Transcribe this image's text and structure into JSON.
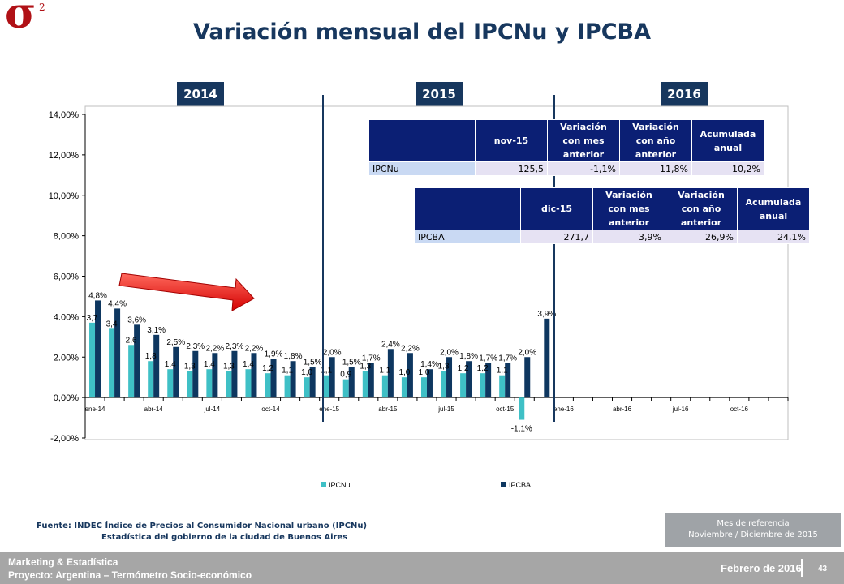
{
  "page": {
    "title": "Variación mensual del IPCNu y IPCBA",
    "logo_text": "σ",
    "logo_sup": "2"
  },
  "year_labels": [
    "2014",
    "2015",
    "2016"
  ],
  "tables": {
    "ipcnu": {
      "headers": [
        "",
        "nov-15",
        "Variación con mes anterior",
        "Variación con año anterior",
        "Acumulada anual"
      ],
      "row": [
        "IPCNu",
        "125,5",
        "-1,1%",
        "11,8%",
        "10,2%"
      ]
    },
    "ipcba": {
      "headers": [
        "",
        "dic-15",
        "Variación con mes anterior",
        "Variación con año anterior",
        "Acumulada anual"
      ],
      "row": [
        "IPCBA",
        "271,7",
        "3,9%",
        "26,9%",
        "24,1%"
      ]
    }
  },
  "chart_data": {
    "type": "bar",
    "ylim": [
      -2,
      14
    ],
    "yticks": [
      -2,
      0,
      2,
      4,
      6,
      8,
      10,
      12,
      14
    ],
    "ytick_labels": [
      "-2,00%",
      "0,00%",
      "2.00%",
      "4.00%",
      "6,00%",
      "8,00%",
      "10,00%",
      "12,00%",
      "14,00%"
    ],
    "xtick_labels": [
      "ene-14",
      "abr-14",
      "jul-14",
      "oct-14",
      "ene-15",
      "abr-15",
      "jul-15",
      "oct-15",
      "ene-16",
      "abr-16",
      "jul-16",
      "oct-16"
    ],
    "categories": [
      "ene-14",
      "feb-14",
      "mar-14",
      "abr-14",
      "may-14",
      "jun-14",
      "jul-14",
      "ago-14",
      "sep-14",
      "oct-14",
      "nov-14",
      "dic-14",
      "ene-15",
      "feb-15",
      "mar-15",
      "abr-15",
      "may-15",
      "jun-15",
      "jul-15",
      "ago-15",
      "sep-15",
      "oct-15",
      "nov-15",
      "dic-15",
      "ene-16",
      "feb-16",
      "mar-16",
      "abr-16",
      "may-16",
      "jun-16",
      "jul-16",
      "ago-16",
      "sep-16",
      "oct-16",
      "nov-16",
      "dic-16"
    ],
    "series": [
      {
        "name": "IPCNu",
        "color": "#3fc0c6",
        "values": [
          3.7,
          3.4,
          2.6,
          1.8,
          1.4,
          1.3,
          1.4,
          1.3,
          1.4,
          1.2,
          1.1,
          1.0,
          1.1,
          0.9,
          1.3,
          1.1,
          1.0,
          1.0,
          1.3,
          1.2,
          1.2,
          1.1,
          -1.1,
          null,
          null,
          null,
          null,
          null,
          null,
          null,
          null,
          null,
          null,
          null,
          null,
          null
        ],
        "labels": [
          "3,7",
          "3,4",
          "2,6",
          "1,8",
          "1,4",
          "1,3",
          "1,4",
          "1,3",
          "1,4",
          "1,2",
          "1,1",
          "1,0",
          "1,1",
          "0,9",
          "1,3",
          "1,1",
          "1,0",
          "1,0",
          "1,3",
          "1,2",
          "1,2",
          "1,1",
          "-1,1%",
          "",
          "",
          "",
          "",
          "",
          "",
          "",
          "",
          "",
          "",
          "",
          "",
          ""
        ]
      },
      {
        "name": "IPCBA",
        "color": "#0e3760",
        "values": [
          4.8,
          4.4,
          3.6,
          3.1,
          2.5,
          2.3,
          2.2,
          2.3,
          2.2,
          1.9,
          1.8,
          1.5,
          2.0,
          1.5,
          1.7,
          2.4,
          2.2,
          1.4,
          2.0,
          1.8,
          1.7,
          1.7,
          2.0,
          3.9,
          null,
          null,
          null,
          null,
          null,
          null,
          null,
          null,
          null,
          null,
          null,
          null
        ],
        "labels": [
          "4,8%",
          "4,4%",
          "3,6%",
          "3,1%",
          "2,5%",
          "2,3%",
          "2,2%",
          "2,3%",
          "2,2%",
          "1,9%",
          "1,8%",
          "1,5%",
          "2,0%",
          "1,5%",
          "1,7%",
          "2,4%",
          "2,2%",
          "1,4%",
          "2,0%",
          "1,8%",
          "1,7%",
          "1,7%",
          "2,0%",
          "3,9%",
          "",
          "",
          "",
          "",
          "",
          "",
          "",
          "",
          "",
          "",
          "",
          ""
        ]
      }
    ],
    "legend": [
      "IPCNu",
      "IPCBA"
    ],
    "legend_position": "bottom"
  },
  "source": {
    "line1": "Fuente: INDEC Índice de Precios al Consumidor Nacional urbano (IPCNu)",
    "line2": "Estadística del gobierno de la ciudad de Buenos Aires"
  },
  "reference": {
    "line1": "Mes de referencia",
    "line2": "Noviembre / Diciembre de 2015"
  },
  "footer": {
    "line1": "Marketing & Estadística",
    "line2": "Proyecto: Argentina – Termómetro Socio-económico",
    "date": "Febrero de 2016",
    "page": "43"
  }
}
